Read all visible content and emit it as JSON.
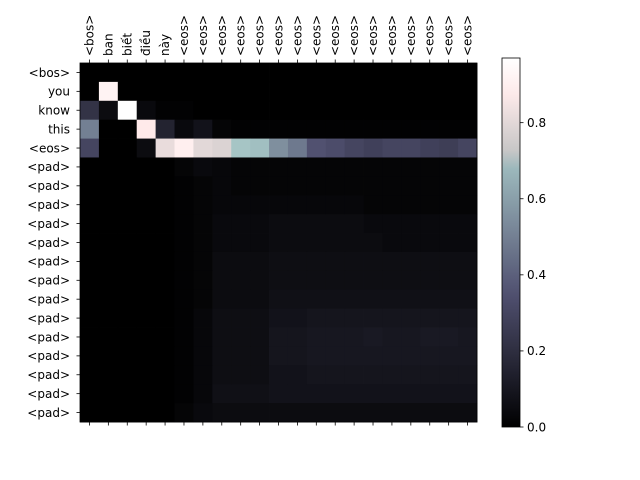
{
  "chart_data": {
    "type": "heatmap",
    "title": "",
    "xlabel": "",
    "ylabel": "",
    "x_labels": [
      "<bos>",
      "ban",
      "biết",
      "điều",
      "này",
      "<eos>",
      "<eos>",
      "<eos>",
      "<eos>",
      "<eos>",
      "<eos>",
      "<eos>",
      "<eos>",
      "<eos>",
      "<eos>",
      "<eos>",
      "<eos>",
      "<eos>",
      "<eos>",
      "<eos>",
      "<eos>"
    ],
    "y_labels": [
      "<bos>",
      "you",
      "know",
      "this",
      "<eos>",
      "<pad>",
      "<pad>",
      "<pad>",
      "<pad>",
      "<pad>",
      "<pad>",
      "<pad>",
      "<pad>",
      "<pad>",
      "<pad>",
      "<pad>",
      "<pad>",
      "<pad>",
      "<pad>"
    ],
    "colormap": "bone",
    "vmin": 0.0,
    "vmax": 0.97,
    "colorbar_ticks": [
      0.0,
      0.2,
      0.4,
      0.6,
      0.8
    ],
    "values": [
      [
        0.0,
        0.0,
        0.0,
        0.0,
        0.0,
        0.0,
        0.0,
        0.0,
        0.0,
        0.0,
        0.0,
        0.0,
        0.0,
        0.0,
        0.0,
        0.0,
        0.0,
        0.0,
        0.0,
        0.0,
        0.0
      ],
      [
        0.0,
        0.92,
        0.0,
        0.0,
        0.0,
        0.0,
        0.0,
        0.0,
        0.0,
        0.0,
        0.0,
        0.0,
        0.0,
        0.0,
        0.0,
        0.0,
        0.0,
        0.0,
        0.0,
        0.0,
        0.0
      ],
      [
        0.22,
        0.05,
        0.97,
        0.04,
        0.01,
        0.01,
        0.0,
        0.0,
        0.0,
        0.0,
        0.0,
        0.0,
        0.0,
        0.0,
        0.0,
        0.0,
        0.0,
        0.0,
        0.0,
        0.0,
        0.0
      ],
      [
        0.5,
        0.0,
        0.0,
        0.88,
        0.15,
        0.04,
        0.08,
        0.02,
        0.01,
        0.01,
        0.01,
        0.01,
        0.01,
        0.01,
        0.01,
        0.01,
        0.01,
        0.01,
        0.01,
        0.01,
        0.01
      ],
      [
        0.3,
        0.0,
        0.0,
        0.05,
        0.82,
        0.9,
        0.8,
        0.78,
        0.72,
        0.7,
        0.55,
        0.48,
        0.35,
        0.33,
        0.3,
        0.28,
        0.3,
        0.3,
        0.28,
        0.27,
        0.3
      ],
      [
        0.0,
        0.0,
        0.0,
        0.0,
        0.0,
        0.02,
        0.04,
        0.03,
        0.02,
        0.02,
        0.02,
        0.02,
        0.02,
        0.02,
        0.02,
        0.02,
        0.02,
        0.02,
        0.02,
        0.02,
        0.02
      ],
      [
        0.0,
        0.0,
        0.0,
        0.0,
        0.0,
        0.01,
        0.02,
        0.03,
        0.02,
        0.02,
        0.02,
        0.02,
        0.02,
        0.02,
        0.02,
        0.02,
        0.02,
        0.02,
        0.02,
        0.02,
        0.02
      ],
      [
        0.0,
        0.0,
        0.0,
        0.0,
        0.0,
        0.01,
        0.02,
        0.03,
        0.03,
        0.03,
        0.03,
        0.03,
        0.03,
        0.03,
        0.03,
        0.02,
        0.02,
        0.02,
        0.02,
        0.02,
        0.02
      ],
      [
        0.0,
        0.0,
        0.0,
        0.0,
        0.0,
        0.01,
        0.02,
        0.04,
        0.04,
        0.04,
        0.05,
        0.05,
        0.05,
        0.05,
        0.05,
        0.04,
        0.04,
        0.04,
        0.04,
        0.04,
        0.04
      ],
      [
        0.0,
        0.0,
        0.0,
        0.0,
        0.0,
        0.01,
        0.02,
        0.04,
        0.04,
        0.04,
        0.05,
        0.05,
        0.05,
        0.05,
        0.05,
        0.05,
        0.04,
        0.04,
        0.04,
        0.04,
        0.04
      ],
      [
        0.0,
        0.0,
        0.0,
        0.0,
        0.0,
        0.01,
        0.02,
        0.05,
        0.05,
        0.05,
        0.06,
        0.06,
        0.06,
        0.06,
        0.06,
        0.06,
        0.06,
        0.06,
        0.06,
        0.06,
        0.06
      ],
      [
        0.0,
        0.0,
        0.0,
        0.0,
        0.0,
        0.01,
        0.02,
        0.05,
        0.05,
        0.05,
        0.06,
        0.06,
        0.06,
        0.06,
        0.06,
        0.06,
        0.06,
        0.06,
        0.06,
        0.06,
        0.06
      ],
      [
        0.0,
        0.0,
        0.0,
        0.0,
        0.0,
        0.01,
        0.02,
        0.05,
        0.05,
        0.05,
        0.07,
        0.07,
        0.07,
        0.07,
        0.07,
        0.07,
        0.07,
        0.07,
        0.07,
        0.07,
        0.07
      ],
      [
        0.0,
        0.0,
        0.0,
        0.0,
        0.0,
        0.01,
        0.03,
        0.06,
        0.06,
        0.06,
        0.08,
        0.08,
        0.09,
        0.09,
        0.09,
        0.09,
        0.09,
        0.09,
        0.09,
        0.09,
        0.09
      ],
      [
        0.0,
        0.0,
        0.0,
        0.0,
        0.0,
        0.01,
        0.03,
        0.06,
        0.06,
        0.06,
        0.09,
        0.09,
        0.1,
        0.1,
        0.1,
        0.11,
        0.1,
        0.1,
        0.11,
        0.11,
        0.1
      ],
      [
        0.0,
        0.0,
        0.0,
        0.0,
        0.0,
        0.01,
        0.03,
        0.06,
        0.06,
        0.06,
        0.09,
        0.09,
        0.1,
        0.1,
        0.1,
        0.1,
        0.1,
        0.1,
        0.1,
        0.1,
        0.1
      ],
      [
        0.0,
        0.0,
        0.0,
        0.0,
        0.0,
        0.01,
        0.03,
        0.06,
        0.06,
        0.06,
        0.08,
        0.08,
        0.09,
        0.09,
        0.09,
        0.09,
        0.09,
        0.09,
        0.09,
        0.09,
        0.09
      ],
      [
        0.0,
        0.0,
        0.0,
        0.0,
        0.0,
        0.01,
        0.03,
        0.07,
        0.07,
        0.07,
        0.08,
        0.08,
        0.08,
        0.08,
        0.08,
        0.08,
        0.08,
        0.08,
        0.08,
        0.08,
        0.08
      ],
      [
        0.0,
        0.0,
        0.0,
        0.0,
        0.0,
        0.02,
        0.04,
        0.05,
        0.05,
        0.05,
        0.05,
        0.05,
        0.05,
        0.05,
        0.05,
        0.05,
        0.05,
        0.05,
        0.05,
        0.05,
        0.05
      ]
    ]
  }
}
